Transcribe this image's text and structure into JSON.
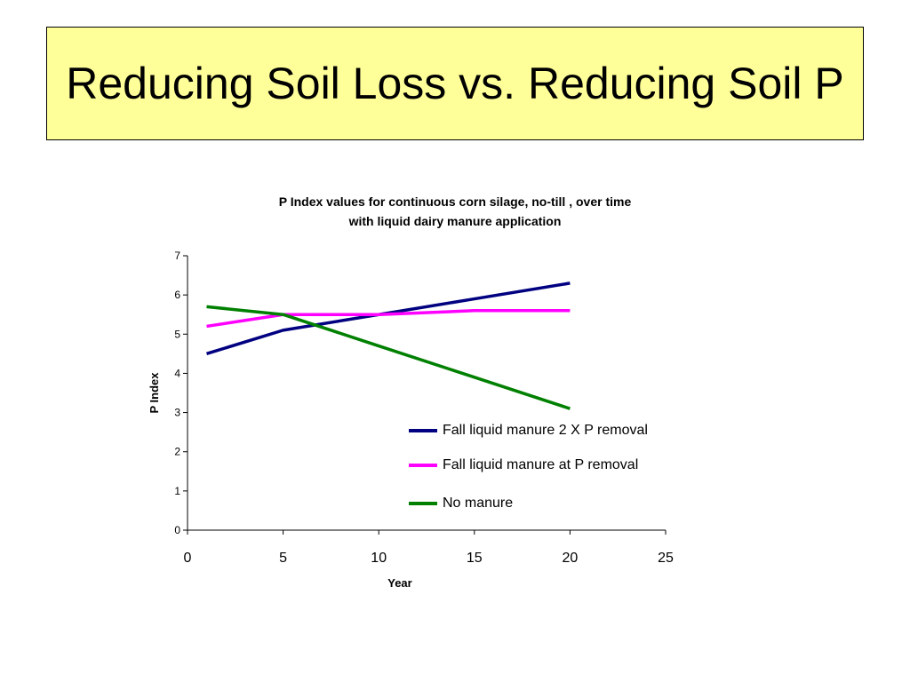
{
  "slide": {
    "title": "Reducing Soil Loss vs. Reducing Soil P",
    "title_bg": "#ffff99"
  },
  "chart_data": {
    "type": "line",
    "title_lines": [
      "P Index values for continuous corn silage, no-till , over time",
      "with liquid dairy manure application"
    ],
    "xlabel": "Year",
    "ylabel": "P Index",
    "xlim": [
      0,
      25
    ],
    "ylim": [
      0,
      7
    ],
    "xticks": [
      0,
      5,
      10,
      15,
      20,
      25
    ],
    "yticks": [
      0,
      1,
      2,
      3,
      4,
      5,
      6,
      7
    ],
    "grid": false,
    "legend_position": "lower-right",
    "series": [
      {
        "name": "Fall liquid manure 2 X P removal",
        "color": "#000080",
        "x": [
          1,
          5,
          10,
          15,
          20
        ],
        "y": [
          4.5,
          5.1,
          5.5,
          5.9,
          6.3
        ]
      },
      {
        "name": "Fall liquid manure at P removal",
        "color": "#ff00ff",
        "x": [
          1,
          5,
          10,
          15,
          20
        ],
        "y": [
          5.2,
          5.5,
          5.5,
          5.6,
          5.6
        ]
      },
      {
        "name": "No manure",
        "color": "#008000",
        "x": [
          1,
          5,
          10,
          15,
          20
        ],
        "y": [
          5.7,
          5.5,
          4.7,
          3.9,
          3.1
        ]
      }
    ]
  }
}
